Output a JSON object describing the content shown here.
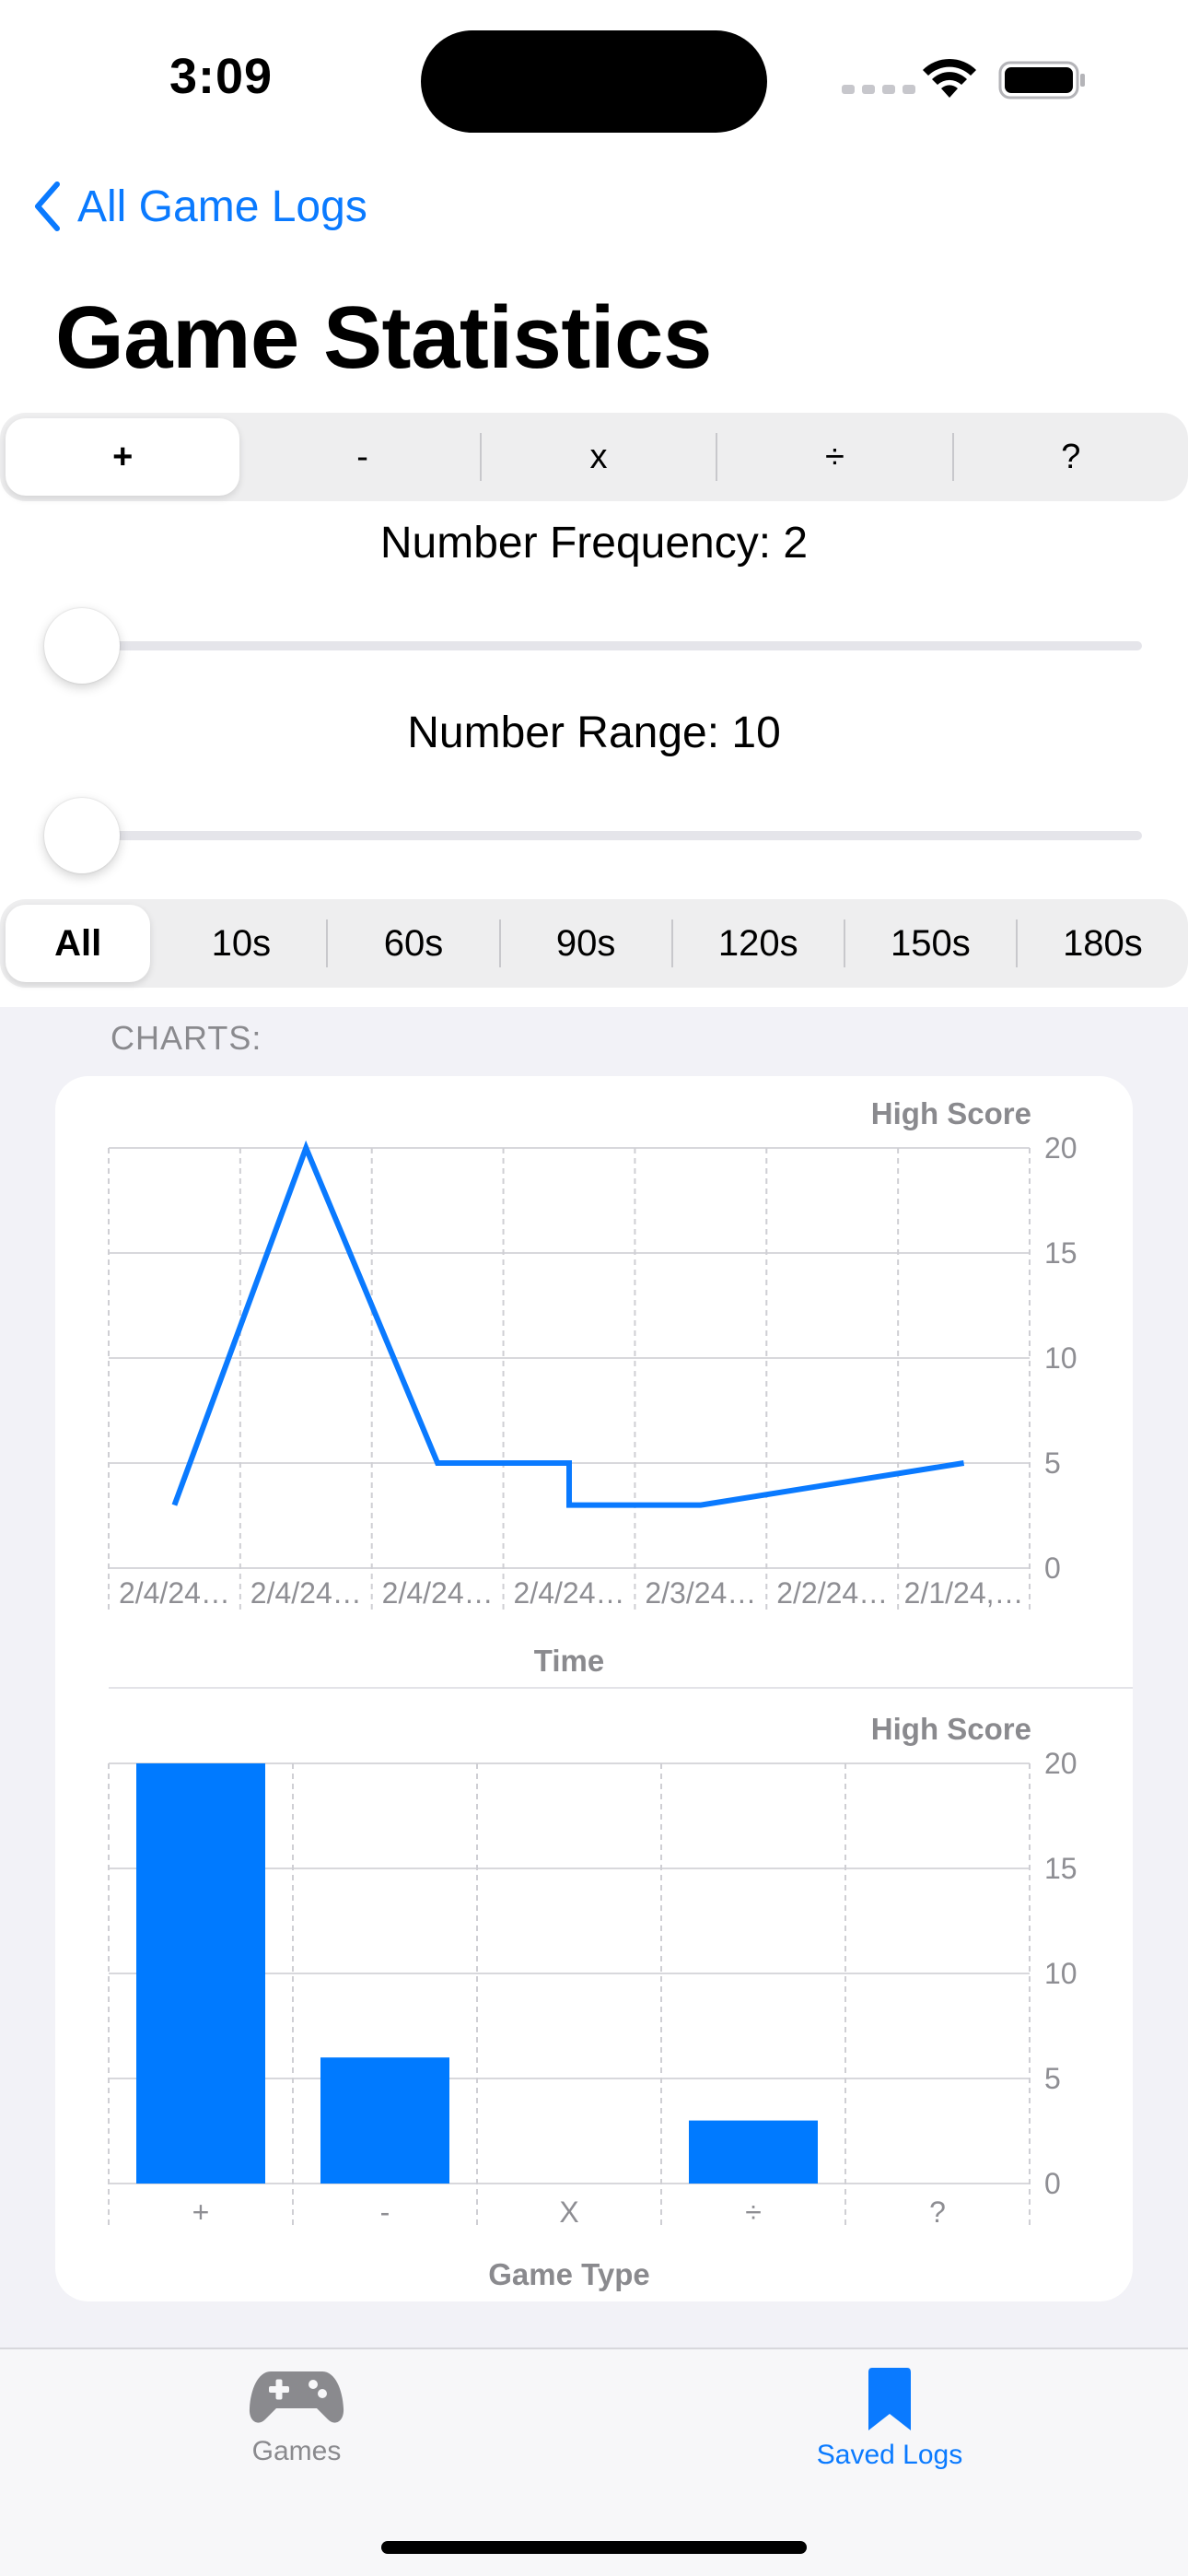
{
  "status_bar": {
    "time": "3:09"
  },
  "nav": {
    "back_label": "All Game Logs",
    "title": "Game Statistics"
  },
  "operation_segment": {
    "items": [
      "+",
      "-",
      "x",
      "÷",
      "?"
    ],
    "selected_index": 0
  },
  "sliders": {
    "frequency": {
      "label": "Number Frequency: 2",
      "value": 2
    },
    "range": {
      "label": "Number Range: 10",
      "value": 10
    }
  },
  "time_segment": {
    "items": [
      "All",
      "10s",
      "60s",
      "90s",
      "120s",
      "150s",
      "180s"
    ],
    "selected_index": 0
  },
  "charts_header": "CHARTS:",
  "colors": {
    "accent": "#0a7aff",
    "bar": "#007aff",
    "segment_bg": "#eeeeef",
    "page_bg": "#f2f2f7"
  },
  "chart_data": [
    {
      "type": "line",
      "title": "",
      "ylabel": "High Score",
      "xlabel": "Time",
      "categories": [
        "2/4/24…",
        "2/4/24…",
        "2/4/24…",
        "2/4/24…",
        "2/3/24…",
        "2/2/24…",
        "2/1/24,…"
      ],
      "points": [
        {
          "x": 0,
          "y": 3
        },
        {
          "x": 1,
          "y": 20
        },
        {
          "x": 2,
          "y": 5
        },
        {
          "x": 3,
          "y": 5
        },
        {
          "x": 3,
          "y": 3
        },
        {
          "x": 4,
          "y": 3
        },
        {
          "x": 6,
          "y": 5
        }
      ],
      "yticks": [
        0,
        5,
        10,
        15,
        20
      ],
      "ylim": [
        0,
        20
      ],
      "grid": true
    },
    {
      "type": "bar",
      "title": "",
      "ylabel": "High Score",
      "xlabel": "Game Type",
      "categories": [
        "+",
        "-",
        "X",
        "÷",
        "?"
      ],
      "values": [
        20,
        6,
        0,
        3,
        0
      ],
      "yticks": [
        0,
        5,
        10,
        15,
        20
      ],
      "ylim": [
        0,
        20
      ],
      "grid": true
    }
  ],
  "tab_bar": {
    "items": [
      {
        "label": "Games",
        "icon": "gamecontroller-icon",
        "selected": false
      },
      {
        "label": "Saved Logs",
        "icon": "bookmark-icon",
        "selected": true
      }
    ]
  }
}
